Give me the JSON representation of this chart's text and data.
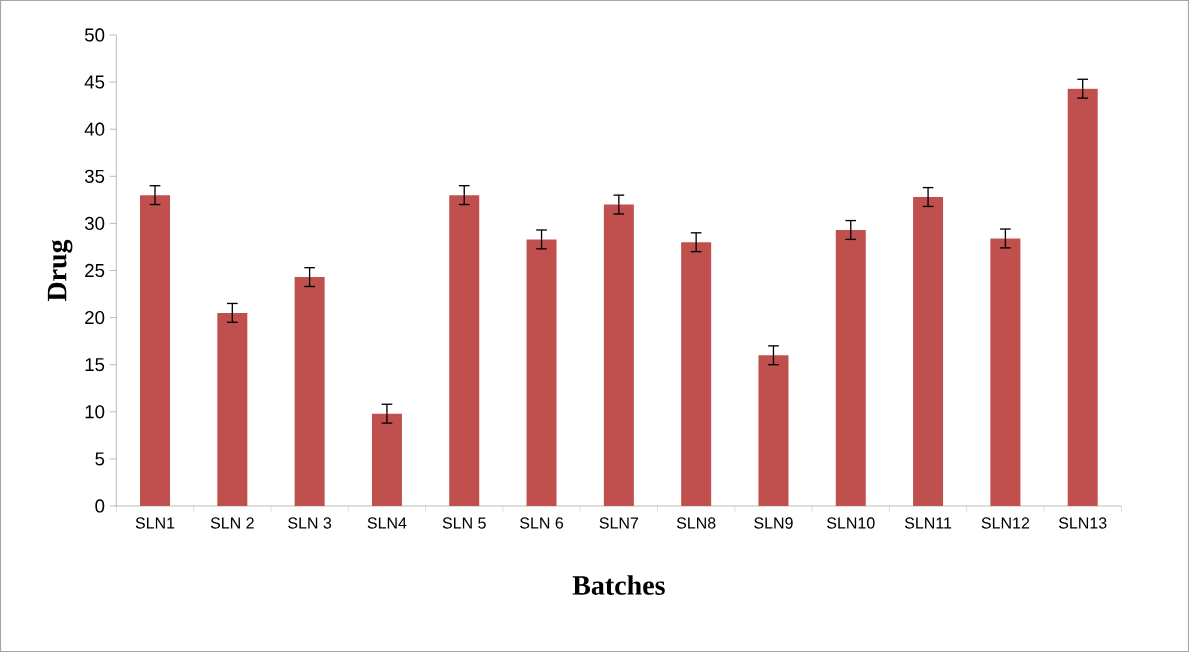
{
  "chart_data": {
    "type": "bar",
    "xlabel": "Batches",
    "ylabel": "Drug",
    "categories": [
      "SLN1",
      "SLN 2",
      "SLN 3",
      "SLN4",
      "SLN 5",
      "SLN 6",
      "SLN7",
      "SLN8",
      "SLN9",
      "SLN10",
      "SLN11",
      "SLN12",
      "SLN13"
    ],
    "values": [
      33.0,
      20.5,
      24.3,
      9.8,
      33.0,
      28.3,
      32.0,
      28.0,
      16.0,
      29.3,
      32.8,
      28.4,
      44.3
    ],
    "errors": [
      1,
      1,
      1,
      1,
      1,
      1,
      1,
      1,
      1,
      1,
      1,
      1,
      1
    ],
    "color": "#c0504d",
    "ylim": [
      0,
      50
    ],
    "yticks": [
      0,
      5,
      10,
      15,
      20,
      25,
      30,
      35,
      40,
      45,
      50
    ],
    "grid": false
  }
}
